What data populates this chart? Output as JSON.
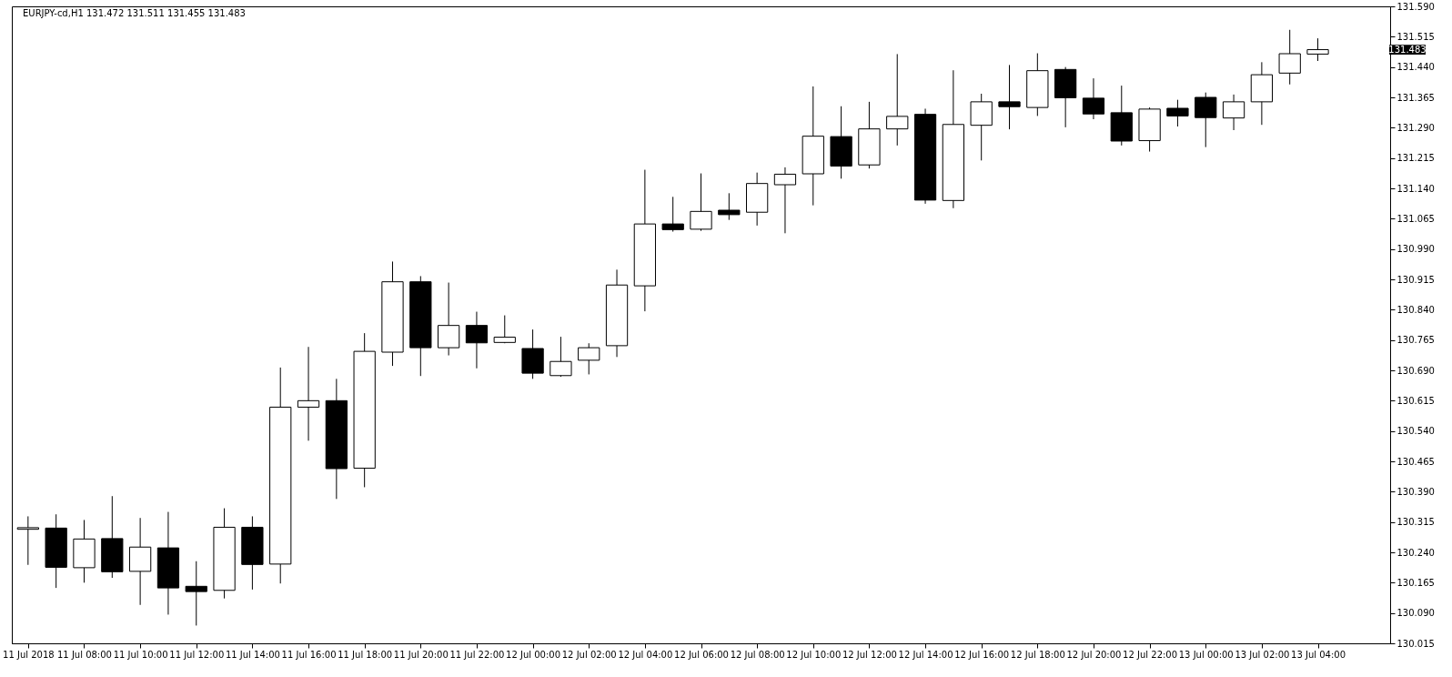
{
  "chart_data": {
    "type": "candlestick",
    "title": "EURJPY-cd,H1  131.472 131.511 131.455 131.483",
    "x": [
      "2018-07-11T06:00",
      "2018-07-11T07:00",
      "2018-07-11T08:00",
      "2018-07-11T09:00",
      "2018-07-11T10:00",
      "2018-07-11T11:00",
      "2018-07-11T12:00",
      "2018-07-11T13:00",
      "2018-07-11T14:00",
      "2018-07-11T15:00",
      "2018-07-11T16:00",
      "2018-07-11T17:00",
      "2018-07-11T18:00",
      "2018-07-11T19:00",
      "2018-07-11T20:00",
      "2018-07-11T21:00",
      "2018-07-11T22:00",
      "2018-07-11T23:00",
      "2018-07-12T00:00",
      "2018-07-12T01:00",
      "2018-07-12T02:00",
      "2018-07-12T03:00",
      "2018-07-12T04:00",
      "2018-07-12T05:00",
      "2018-07-12T06:00",
      "2018-07-12T07:00",
      "2018-07-12T08:00",
      "2018-07-12T09:00",
      "2018-07-12T10:00",
      "2018-07-12T11:00",
      "2018-07-12T12:00",
      "2018-07-12T13:00",
      "2018-07-12T14:00",
      "2018-07-12T15:00",
      "2018-07-12T16:00",
      "2018-07-12T17:00",
      "2018-07-12T18:00",
      "2018-07-12T19:00",
      "2018-07-12T20:00",
      "2018-07-12T21:00",
      "2018-07-12T22:00",
      "2018-07-12T23:00",
      "2018-07-13T00:00",
      "2018-07-13T01:00",
      "2018-07-13T02:00",
      "2018-07-13T03:00",
      "2018-07-13T04:00"
    ],
    "series": [
      {
        "color": "#000000",
        "ohlc": [
          [
            130.297,
            130.329,
            130.209,
            130.301
          ],
          [
            130.3,
            130.334,
            130.152,
            130.203
          ],
          [
            130.202,
            130.32,
            130.165,
            130.273
          ],
          [
            130.274,
            130.379,
            130.177,
            130.192
          ],
          [
            130.193,
            130.325,
            130.11,
            130.253
          ],
          [
            130.251,
            130.34,
            130.086,
            130.152
          ],
          [
            130.156,
            130.218,
            130.059,
            130.143
          ],
          [
            130.146,
            130.349,
            130.126,
            130.302
          ],
          [
            130.302,
            130.329,
            130.148,
            130.21
          ],
          [
            130.211,
            130.697,
            130.163,
            130.599
          ],
          [
            130.599,
            130.748,
            130.516,
            130.615
          ],
          [
            130.615,
            130.669,
            130.372,
            130.447
          ],
          [
            130.448,
            130.782,
            130.401,
            130.737
          ],
          [
            130.735,
            130.959,
            130.701,
            130.909
          ],
          [
            130.909,
            130.923,
            130.676,
            130.746
          ],
          [
            130.746,
            130.907,
            130.727,
            130.801
          ],
          [
            130.801,
            130.835,
            130.695,
            130.758
          ],
          [
            130.759,
            130.826,
            130.757,
            130.772
          ],
          [
            130.744,
            130.791,
            130.669,
            130.683
          ],
          [
            130.677,
            130.773,
            130.674,
            130.712
          ],
          [
            130.715,
            130.757,
            130.68,
            130.746
          ],
          [
            130.751,
            130.939,
            130.723,
            130.901
          ],
          [
            130.899,
            131.186,
            130.836,
            131.052
          ],
          [
            131.052,
            131.119,
            131.033,
            131.038
          ],
          [
            131.039,
            131.177,
            131.035,
            131.083
          ],
          [
            131.086,
            131.128,
            131.062,
            131.075
          ],
          [
            131.081,
            131.179,
            131.048,
            131.152
          ],
          [
            131.149,
            131.192,
            131.029,
            131.175
          ],
          [
            131.176,
            131.392,
            131.098,
            131.269
          ],
          [
            131.268,
            131.343,
            131.164,
            131.195
          ],
          [
            131.198,
            131.354,
            131.189,
            131.287
          ],
          [
            131.287,
            131.472,
            131.246,
            131.318
          ],
          [
            131.323,
            131.337,
            131.102,
            131.111
          ],
          [
            131.11,
            131.432,
            131.091,
            131.298
          ],
          [
            131.296,
            131.374,
            131.209,
            131.354
          ],
          [
            131.354,
            131.445,
            131.286,
            131.342
          ],
          [
            131.34,
            131.474,
            131.319,
            131.431
          ],
          [
            131.434,
            131.44,
            131.291,
            131.364
          ],
          [
            131.363,
            131.412,
            131.311,
            131.324
          ],
          [
            131.327,
            131.394,
            131.246,
            131.257
          ],
          [
            131.258,
            131.34,
            131.231,
            131.336
          ],
          [
            131.338,
            131.359,
            131.293,
            131.319
          ],
          [
            131.365,
            131.377,
            131.242,
            131.315
          ],
          [
            131.314,
            131.372,
            131.284,
            131.354
          ],
          [
            131.354,
            131.452,
            131.297,
            131.421
          ],
          [
            131.425,
            131.532,
            131.397,
            131.473
          ],
          [
            131.472,
            131.511,
            131.455,
            131.483
          ]
        ]
      }
    ],
    "xlim": [
      "2018-07-11T05:35",
      "2018-07-13T06:25"
    ],
    "xticks": [
      {
        "value": "2018-07-11T06:00",
        "label": "11 Jul 2018"
      },
      {
        "value": "2018-07-11T08:00",
        "label": "11 Jul 08:00"
      },
      {
        "value": "2018-07-11T10:00",
        "label": "11 Jul 10:00"
      },
      {
        "value": "2018-07-11T12:00",
        "label": "11 Jul 12:00"
      },
      {
        "value": "2018-07-11T14:00",
        "label": "11 Jul 14:00"
      },
      {
        "value": "2018-07-11T16:00",
        "label": "11 Jul 16:00"
      },
      {
        "value": "2018-07-11T18:00",
        "label": "11 Jul 18:00"
      },
      {
        "value": "2018-07-11T20:00",
        "label": "11 Jul 20:00"
      },
      {
        "value": "2018-07-11T22:00",
        "label": "11 Jul 22:00"
      },
      {
        "value": "2018-07-12T00:00",
        "label": "12 Jul 00:00"
      },
      {
        "value": "2018-07-12T02:00",
        "label": "12 Jul 02:00"
      },
      {
        "value": "2018-07-12T04:00",
        "label": "12 Jul 04:00"
      },
      {
        "value": "2018-07-12T06:00",
        "label": "12 Jul 06:00"
      },
      {
        "value": "2018-07-12T08:00",
        "label": "12 Jul 08:00"
      },
      {
        "value": "2018-07-12T10:00",
        "label": "12 Jul 10:00"
      },
      {
        "value": "2018-07-12T12:00",
        "label": "12 Jul 12:00"
      },
      {
        "value": "2018-07-12T14:00",
        "label": "12 Jul 14:00"
      },
      {
        "value": "2018-07-12T16:00",
        "label": "12 Jul 16:00"
      },
      {
        "value": "2018-07-12T18:00",
        "label": "12 Jul 18:00"
      },
      {
        "value": "2018-07-12T20:00",
        "label": "12 Jul 20:00"
      },
      {
        "value": "2018-07-12T22:00",
        "label": "12 Jul 22:00"
      },
      {
        "value": "2018-07-13T00:00",
        "label": "13 Jul 00:00"
      },
      {
        "value": "2018-07-13T02:00",
        "label": "13 Jul 02:00"
      },
      {
        "value": "2018-07-13T04:00",
        "label": "13 Jul 04:00"
      }
    ],
    "ylim": [
      130.015,
      131.59
    ],
    "yticks": [
      {
        "value": 130.015,
        "label": "130.015"
      },
      {
        "value": 130.09,
        "label": "130.090"
      },
      {
        "value": 130.165,
        "label": "130.165"
      },
      {
        "value": 130.24,
        "label": "130.240"
      },
      {
        "value": 130.315,
        "label": "130.315"
      },
      {
        "value": 130.39,
        "label": "130.390"
      },
      {
        "value": 130.465,
        "label": "130.465"
      },
      {
        "value": 130.54,
        "label": "130.540"
      },
      {
        "value": 130.615,
        "label": "130.615"
      },
      {
        "value": 130.69,
        "label": "130.690"
      },
      {
        "value": 130.765,
        "label": "130.765"
      },
      {
        "value": 130.84,
        "label": "130.840"
      },
      {
        "value": 130.915,
        "label": "130.915"
      },
      {
        "value": 130.99,
        "label": "130.990"
      },
      {
        "value": 131.065,
        "label": "131.065"
      },
      {
        "value": 131.14,
        "label": "131.140"
      },
      {
        "value": 131.215,
        "label": "131.215"
      },
      {
        "value": 131.29,
        "label": "131.290"
      },
      {
        "value": 131.365,
        "label": "131.365"
      },
      {
        "value": 131.44,
        "label": "131.440"
      },
      {
        "value": 131.515,
        "label": "131.515"
      },
      {
        "value": 131.59,
        "label": "131.590"
      }
    ],
    "annotations": [
      "131.483"
    ],
    "grid": false
  }
}
